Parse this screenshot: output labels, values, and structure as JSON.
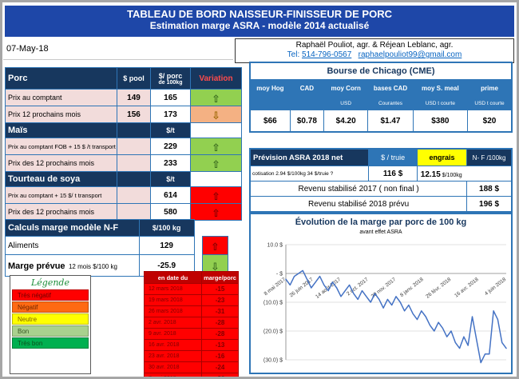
{
  "colors": {
    "title_blue": "#1E47A8",
    "table_header_navy": "#17375E",
    "medium_blue": "#2E75B6",
    "alert_red": "#FF0000",
    "dark_red": "#C00000",
    "good_green": "#92D050",
    "neutral_yellow": "#FFFF00"
  },
  "icons": {
    "up_arrow": "⇧",
    "down_arrow": "⇩"
  },
  "header": {
    "title_line1": "TABLEAU DE BORD NAISSEUR-FINISSEUR DE PORC",
    "title_line2": "Estimation marge ASRA - modèle 2014 actualisé",
    "authors": "Raphaël Pouliot, agr.   &   Réjean Leblanc, agr.",
    "tel_label": "Tel:",
    "tel_number": "514-796-0567",
    "email": "raphaelpouliot99@gmail.com",
    "date": "07-May-18"
  },
  "porc_table": {
    "title": "Porc",
    "col_pool": "$ pool",
    "col_value_1": "$/ porc",
    "col_value_2": "de 100kg",
    "col_variation": "Variation",
    "rows": [
      {
        "label": "Prix au comptant",
        "pool": "149",
        "value": "165"
      },
      {
        "label": "Prix 12 prochains mois",
        "pool": "156",
        "value": "173"
      }
    ],
    "mais_title": "Maïs",
    "mais_unit": "$/t",
    "mais_rows": [
      {
        "label": "Prix au comptant FOB + 15 $ /t transport",
        "value": "229"
      },
      {
        "label": "Prix des 12 prochains mois",
        "value": "233"
      }
    ],
    "soya_title": "Tourteau de soya",
    "soya_unit": "$/t",
    "soya_rows": [
      {
        "label": "Prix au comptant + 15 $/ t transport",
        "value": "614"
      },
      {
        "label": "Prix des 12 prochains mois",
        "value": "580"
      }
    ]
  },
  "marge_block": {
    "title": "Calculs marge  modèle N-F",
    "unit": "$/100 kg",
    "aliments_label": "Aliments",
    "aliments_value": "129",
    "marge_label": "Marge prévue",
    "marge_sublabel": "12 mois  $/100 kg",
    "marge_value": "-25.9"
  },
  "legend": {
    "title": "Légende",
    "items": [
      {
        "label": "Très négatif",
        "color": "#FF0000",
        "text_color": "#6B0000"
      },
      {
        "label": "Négatif",
        "color": "#FF6A13",
        "text_color": "#6B2500"
      },
      {
        "label": "Neutre",
        "color": "#FFFF00",
        "text_color": "#7F6000"
      },
      {
        "label": "Bon",
        "color": "#A9D18E",
        "text_color": "#375623"
      },
      {
        "label": "Très bon",
        "color": "#00B050",
        "text_color": "#0B4F1C"
      }
    ]
  },
  "marge_table": {
    "col_date": "en date du",
    "col_value": "marge/porc",
    "rows": [
      {
        "date": "12 mars 2018",
        "value": "-15"
      },
      {
        "date": "19 mars 2018",
        "value": "-23"
      },
      {
        "date": "26 mars 2018",
        "value": "-31"
      },
      {
        "date": "2 avr. 2018",
        "value": "-28"
      },
      {
        "date": "9 avr. 2018",
        "value": "-28"
      },
      {
        "date": "16 avr. 2018",
        "value": "-13"
      },
      {
        "date": "23 avr. 2018",
        "value": "-16"
      },
      {
        "date": "30 avr. 2018",
        "value": "-24"
      },
      {
        "date": "7 mai 2018",
        "value": "-26"
      }
    ]
  },
  "cme": {
    "title": "Bourse de Chicago (CME)",
    "columns": [
      {
        "header": "moy Hog",
        "subheader": "",
        "value": "$66"
      },
      {
        "header": "CAD",
        "subheader": "",
        "value": "$0.78"
      },
      {
        "header": "moy Corn",
        "subheader": "USD",
        "value": "$4.20"
      },
      {
        "header": "bases CAD",
        "subheader": "Courantes",
        "value": "$1.47"
      },
      {
        "header": "moy S. meal",
        "subheader": "USD t courte",
        "value": "$380"
      },
      {
        "header": "prime",
        "subheader": "USD t courte",
        "value": "$20"
      }
    ]
  },
  "asra": {
    "title": "Prévision ASRA 2018 net",
    "col_truie": "$ / truie",
    "col_engrais": "engrais",
    "col_nf": "N- F /100kg",
    "cotisation": "cotisation 2.94 $/100kg  34 $/truie ?",
    "truie_value": "116 $",
    "engrais_value": "12.15",
    "engrais_unit": " $/100kg",
    "rows": [
      {
        "label": "Revenu stabilisé 2017 ( non final )",
        "value": "188 $"
      },
      {
        "label": "Revenu stabilisé 2018 prévu",
        "value": "196 $"
      }
    ]
  },
  "chart_data": {
    "type": "line",
    "title": "Évolution de la marge par porc de 100 kg",
    "subtitle": "avant effet ASRA",
    "xlabel": "",
    "ylabel": "",
    "ylim": [
      -30,
      10
    ],
    "grid": true,
    "legend": "none",
    "y_ticks": [
      10,
      0,
      -10,
      -20,
      -30
    ],
    "y_tick_labels": [
      "10.0 $",
      "- $",
      "(10.0) $",
      "(20.0) $",
      "(30.0) $"
    ],
    "x_tick_labels": [
      "8 mai 2017",
      "26 juin 2017",
      "14 août 2017",
      "2 oct. 2017",
      "20 nov. 2017",
      "8 janv. 2018",
      "26 févr. 2018",
      "16 avr. 2018",
      "4 juin 2018"
    ],
    "series": [
      {
        "name": "marge par porc",
        "color": "#4472C4",
        "values": [
          -2,
          -4,
          -1,
          0,
          1,
          -2,
          -5,
          -3,
          -1,
          -4,
          -6,
          -3,
          -5,
          -8,
          -6,
          -4,
          -7,
          -9,
          -6,
          -8,
          -10,
          -7,
          -9,
          -12,
          -9,
          -11,
          -8,
          -10,
          -13,
          -11,
          -14,
          -16,
          -13,
          -15,
          -18,
          -20,
          -17,
          -19,
          -22,
          -20,
          -24,
          -26,
          -22,
          -25,
          -15,
          -23,
          -31,
          -28,
          -28,
          -13,
          -16,
          -24,
          -26
        ]
      }
    ]
  }
}
